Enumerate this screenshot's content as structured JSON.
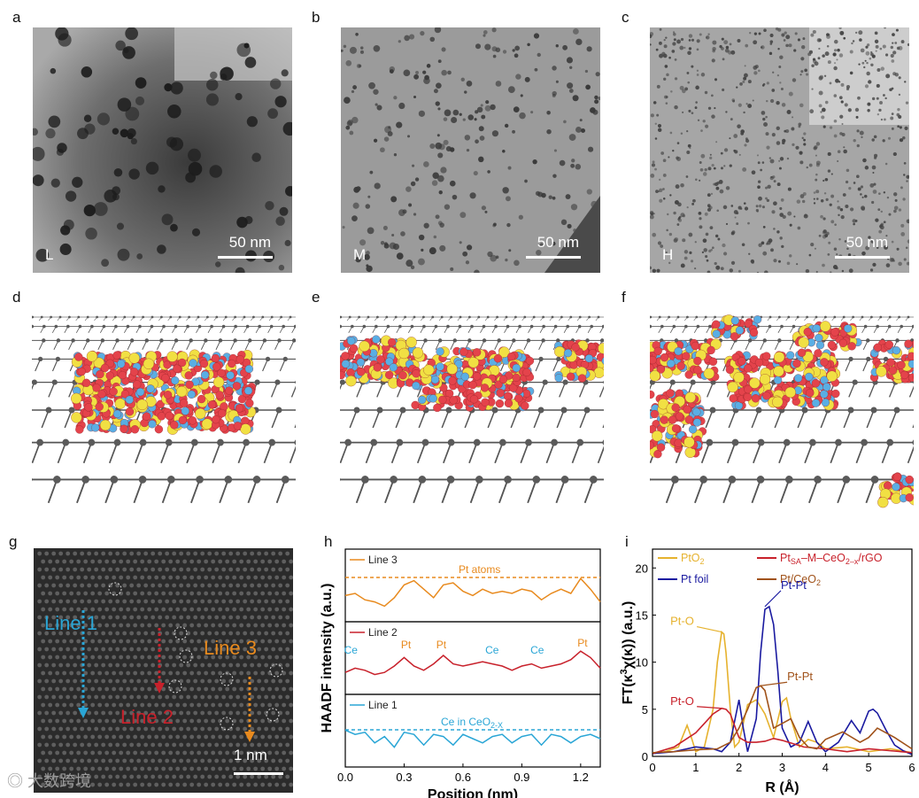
{
  "panels": {
    "a": {
      "letter": "a",
      "tag": "L",
      "scale": "50 nm"
    },
    "b": {
      "letter": "b",
      "tag": "M",
      "scale": "50 nm"
    },
    "c": {
      "letter": "c",
      "tag": "H",
      "scale": "50 nm"
    },
    "d": {
      "letter": "d"
    },
    "e": {
      "letter": "e"
    },
    "f": {
      "letter": "f"
    },
    "g": {
      "letter": "g",
      "line1": "Line 1",
      "line2": "Line 2",
      "line3": "Line 3",
      "scale": "1 nm"
    },
    "h": {
      "letter": "h"
    },
    "i": {
      "letter": "i"
    }
  },
  "watermark": "大数跨境",
  "colors": {
    "line1": "#2aa6d6",
    "line2": "#c8212b",
    "line3": "#e88a1e",
    "ptfoil": "#1a1aa0",
    "pto2": "#e6b22e",
    "ptsa": "#c8212b",
    "ptceo2": "#a0521a"
  },
  "chart_data": [
    {
      "type": "line",
      "ylabel": "HAADF intensity (a.u.)",
      "xlabel": "Position (nm)",
      "xlim": [
        0,
        1.3
      ],
      "xticks": [
        "0.0",
        "0.3",
        "0.6",
        "0.9",
        "1.2"
      ],
      "series": [
        {
          "name": "Line 3",
          "reference_label": "Pt atoms",
          "x": [
            0,
            0.05,
            0.1,
            0.15,
            0.2,
            0.25,
            0.3,
            0.35,
            0.4,
            0.45,
            0.5,
            0.55,
            0.6,
            0.65,
            0.7,
            0.75,
            0.8,
            0.85,
            0.9,
            0.95,
            1.0,
            1.05,
            1.1,
            1.15,
            1.2,
            1.25,
            1.3
          ],
          "y": [
            0.45,
            0.5,
            0.35,
            0.3,
            0.2,
            0.4,
            0.7,
            0.8,
            0.6,
            0.4,
            0.7,
            0.75,
            0.55,
            0.45,
            0.6,
            0.5,
            0.55,
            0.5,
            0.6,
            0.55,
            0.35,
            0.5,
            0.6,
            0.5,
            0.85,
            0.6,
            0.3
          ]
        },
        {
          "name": "Line 2",
          "peaks": [
            "Ce",
            "Pt",
            "Pt",
            "Ce",
            "Ce",
            "Pt"
          ],
          "x": [
            0,
            0.05,
            0.1,
            0.15,
            0.2,
            0.25,
            0.3,
            0.35,
            0.4,
            0.45,
            0.5,
            0.55,
            0.6,
            0.65,
            0.7,
            0.75,
            0.8,
            0.85,
            0.9,
            0.95,
            1.0,
            1.05,
            1.1,
            1.15,
            1.2,
            1.25,
            1.3
          ],
          "y": [
            0.35,
            0.45,
            0.4,
            0.3,
            0.35,
            0.5,
            0.7,
            0.5,
            0.4,
            0.55,
            0.75,
            0.55,
            0.5,
            0.55,
            0.6,
            0.55,
            0.5,
            0.4,
            0.5,
            0.55,
            0.45,
            0.5,
            0.55,
            0.65,
            0.85,
            0.7,
            0.45
          ]
        },
        {
          "name": "Line 1",
          "reference_label": "Ce in CeO2-X",
          "x": [
            0,
            0.05,
            0.1,
            0.15,
            0.2,
            0.25,
            0.3,
            0.35,
            0.4,
            0.45,
            0.5,
            0.55,
            0.6,
            0.65,
            0.7,
            0.75,
            0.8,
            0.85,
            0.9,
            0.95,
            1.0,
            1.05,
            1.1,
            1.15,
            1.2,
            1.25,
            1.3
          ],
          "y": [
            0.7,
            0.6,
            0.65,
            0.4,
            0.55,
            0.3,
            0.65,
            0.6,
            0.35,
            0.6,
            0.55,
            0.35,
            0.6,
            0.5,
            0.4,
            0.55,
            0.6,
            0.4,
            0.55,
            0.6,
            0.35,
            0.6,
            0.55,
            0.4,
            0.55,
            0.6,
            0.5
          ]
        }
      ]
    },
    {
      "type": "line",
      "ylabel": "FT(κ3χ(κ)) (a.u.)",
      "xlabel": "R (Å)",
      "xlim": [
        0,
        6
      ],
      "ylim": [
        0,
        22
      ],
      "xticks": [
        0,
        1,
        2,
        3,
        4,
        5,
        6
      ],
      "yticks": [
        0,
        5,
        10,
        15,
        20
      ],
      "annotations": [
        {
          "text": "Pt-O",
          "x": 1.6,
          "y": 13.2
        },
        {
          "text": "Pt-Pt",
          "x": 2.6,
          "y": 15.9
        },
        {
          "text": "Pt-Pt",
          "x": 2.5,
          "y": 7.5
        },
        {
          "text": "Pt-O",
          "x": 1.6,
          "y": 5.1
        }
      ],
      "series": [
        {
          "name": "PtO₂",
          "color_key": "pto2",
          "x": [
            0,
            0.3,
            0.6,
            0.8,
            0.9,
            1.0,
            1.2,
            1.4,
            1.5,
            1.6,
            1.65,
            1.7,
            1.8,
            1.9,
            2.0,
            2.2,
            2.4,
            2.6,
            2.8,
            3.0,
            3.1,
            3.2,
            3.4,
            3.6,
            3.8,
            4.0,
            4.5,
            5.0,
            5.5,
            6.0
          ],
          "y": [
            0.3,
            0.5,
            1.0,
            3.3,
            2.0,
            0.5,
            1.0,
            5.0,
            10.0,
            13.2,
            13.0,
            11.0,
            5.0,
            1.0,
            1.5,
            5.5,
            6.0,
            4.5,
            2.0,
            5.8,
            6.2,
            4.0,
            1.0,
            1.8,
            1.5,
            0.8,
            1.0,
            0.5,
            0.8,
            0.4
          ]
        },
        {
          "name": "Pt foil",
          "color_key": "ptfoil",
          "x": [
            0,
            0.5,
            1.0,
            1.4,
            1.6,
            1.8,
            2.0,
            2.1,
            2.2,
            2.4,
            2.5,
            2.6,
            2.7,
            2.8,
            2.9,
            3.0,
            3.2,
            3.4,
            3.6,
            3.8,
            4.0,
            4.3,
            4.6,
            4.8,
            5.0,
            5.1,
            5.2,
            5.4,
            5.6,
            5.8,
            6.0
          ],
          "y": [
            0.3,
            0.5,
            1.0,
            0.8,
            0.5,
            1.5,
            6.0,
            3.0,
            0.5,
            4.0,
            11.0,
            15.6,
            15.9,
            14.0,
            9.0,
            3.0,
            1.0,
            1.5,
            3.7,
            1.5,
            0.5,
            1.5,
            3.8,
            2.5,
            4.8,
            5.0,
            4.6,
            2.8,
            1.2,
            0.6,
            0.2
          ]
        },
        {
          "name": "PtSA-M-CeO2-x/rGO",
          "color_key": "ptsa",
          "x": [
            0,
            0.5,
            1.0,
            1.2,
            1.4,
            1.6,
            1.7,
            1.8,
            2.0,
            2.2,
            2.4,
            2.6,
            2.8,
            3.0,
            3.5,
            4.0,
            4.5,
            5.0,
            5.5,
            6.0
          ],
          "y": [
            0.3,
            1.0,
            2.5,
            3.5,
            4.5,
            5.1,
            5.0,
            4.5,
            2.0,
            1.5,
            1.5,
            1.6,
            1.9,
            1.7,
            1.0,
            0.8,
            0.5,
            0.8,
            0.6,
            0.4
          ]
        },
        {
          "name": "Pt/CeO₂",
          "color_key": "ptceo2",
          "x": [
            0,
            0.5,
            1.0,
            1.5,
            1.8,
            2.0,
            2.2,
            2.4,
            2.5,
            2.6,
            2.7,
            2.8,
            3.0,
            3.2,
            3.4,
            3.6,
            3.8,
            4.0,
            4.4,
            4.8,
            5.0,
            5.2,
            5.6,
            6.0
          ],
          "y": [
            0.4,
            0.5,
            0.7,
            0.8,
            1.5,
            3.0,
            5.0,
            7.3,
            7.5,
            7.0,
            5.0,
            3.0,
            3.5,
            4.0,
            2.0,
            1.0,
            0.8,
            1.8,
            2.6,
            1.5,
            2.0,
            3.0,
            2.0,
            0.8
          ]
        }
      ]
    }
  ]
}
